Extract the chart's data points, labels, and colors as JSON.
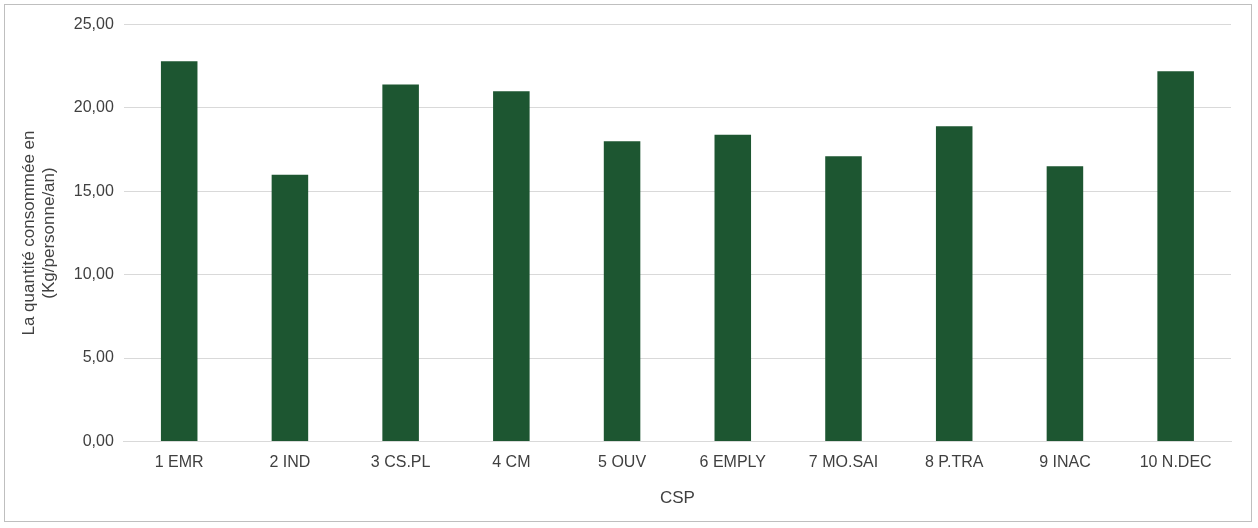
{
  "chart_data": {
    "type": "bar",
    "categories": [
      "1 EMR",
      "2 IND",
      "3 CS.PL",
      "4 CM",
      "5 OUV",
      "6 EMPLY",
      "7 MO.SAI",
      "8 P.TRA",
      "9 INAC",
      "10 N.DEC"
    ],
    "values": [
      22.8,
      16.0,
      21.4,
      21.0,
      18.0,
      18.4,
      17.1,
      18.9,
      16.5,
      22.2
    ],
    "color": "#1d5631",
    "xlabel": "CSP",
    "ylabel": "La quantité consommée en (Kg/personne/an)",
    "ylim": [
      0,
      25
    ],
    "yticks": [
      {
        "value": 0,
        "label": "0,00"
      },
      {
        "value": 5,
        "label": "5,00"
      },
      {
        "value": 10,
        "label": "10,00"
      },
      {
        "value": 15,
        "label": "15,00"
      },
      {
        "value": 20,
        "label": "20,00"
      },
      {
        "value": 25,
        "label": "25,00"
      }
    ],
    "grid": "y",
    "legend": false
  }
}
